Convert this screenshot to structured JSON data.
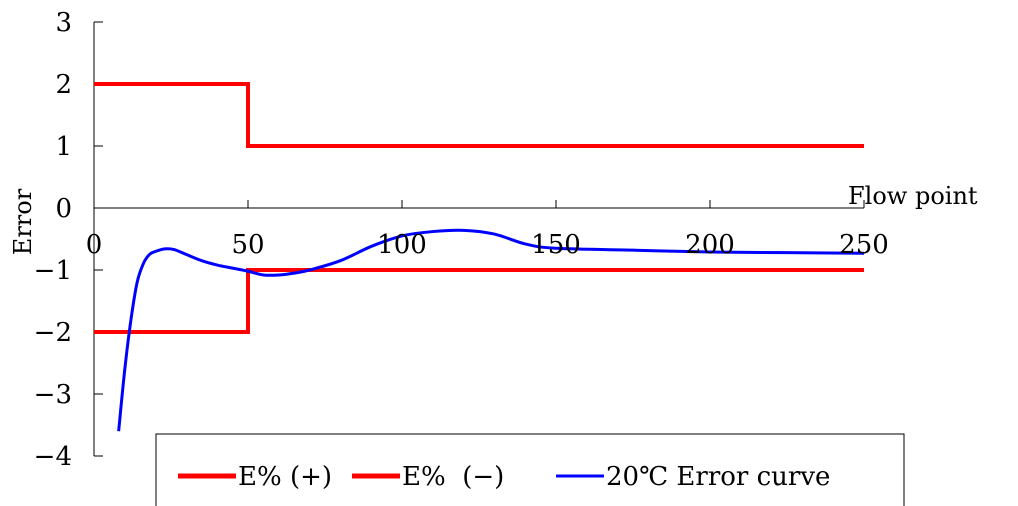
{
  "chart_data": {
    "type": "line",
    "title": "",
    "xlabel": "Flow point",
    "ylabel": "Error",
    "xlim": [
      0,
      250
    ],
    "ylim": [
      -4,
      3
    ],
    "x_ticks": [
      0,
      50,
      100,
      150,
      200,
      250
    ],
    "y_ticks": [
      3,
      2,
      1,
      0,
      -1,
      -2,
      -3,
      -4
    ],
    "x_tick_labels": [
      "0",
      "50",
      "100",
      "150",
      "200",
      "250"
    ],
    "y_tick_labels": [
      "3",
      "2",
      "1",
      "0",
      "−1",
      "−2",
      "−3",
      "−4"
    ],
    "grid": false,
    "legend_position": "bottom",
    "series": [
      {
        "name": "E% (+)",
        "legend_label": "E% (+)",
        "color": "#ff0000",
        "shape": "step",
        "x": [
          0,
          50,
          50,
          250
        ],
        "y": [
          2,
          2,
          1,
          1
        ]
      },
      {
        "name": "E% (−)",
        "legend_label": "E%  (−)",
        "color": "#ff0000",
        "shape": "step",
        "x": [
          0,
          50,
          50,
          250
        ],
        "y": [
          -2,
          -2,
          -1,
          -1
        ]
      },
      {
        "name": "20℃ Error curve",
        "legend_label": "20℃ Error curve",
        "color": "#0000ff",
        "shape": "smooth",
        "x": [
          8,
          10,
          12,
          14,
          16,
          18,
          20,
          23,
          26,
          30,
          35,
          40,
          45,
          50,
          55,
          60,
          65,
          70,
          80,
          90,
          100,
          110,
          120,
          130,
          140,
          150,
          175,
          200,
          225,
          250
        ],
        "y": [
          -3.6,
          -2.6,
          -1.8,
          -1.2,
          -0.9,
          -0.75,
          -0.7,
          -0.66,
          -0.67,
          -0.75,
          -0.85,
          -0.92,
          -0.97,
          -1.02,
          -1.08,
          -1.08,
          -1.05,
          -1.0,
          -0.85,
          -0.62,
          -0.45,
          -0.38,
          -0.36,
          -0.42,
          -0.58,
          -0.65,
          -0.68,
          -0.71,
          -0.72,
          -0.73
        ]
      }
    ]
  }
}
